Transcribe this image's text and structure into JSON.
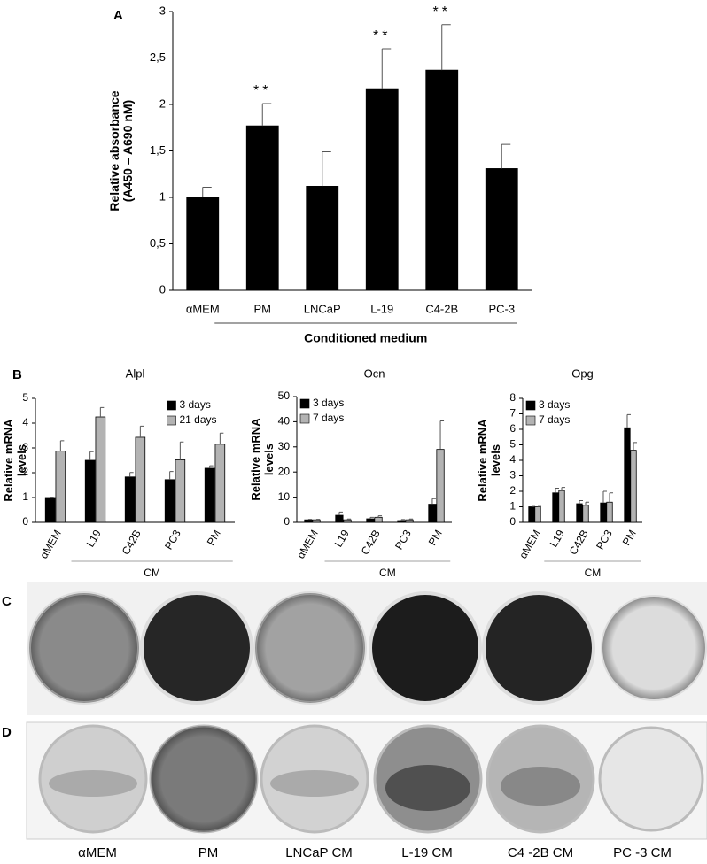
{
  "panel_labels": [
    "A",
    "B",
    "C",
    "D"
  ],
  "chart_data": [
    {
      "type": "bar",
      "ylabel": [
        "Relative absorbance",
        "(A450 – A690 nM)"
      ],
      "categories": [
        "αMEM",
        "PM",
        "LNCaP",
        "L-19",
        "C4-2B",
        "PC-3"
      ],
      "values": [
        1.0,
        1.77,
        1.12,
        2.17,
        2.37,
        1.31
      ],
      "errors": [
        0.11,
        0.24,
        0.37,
        0.43,
        0.49,
        0.26
      ],
      "significance": [
        null,
        "**",
        null,
        "**",
        "**",
        null
      ],
      "color": "#000000",
      "group_label": "Conditioned medium",
      "ylim": [
        0,
        3
      ],
      "yticks": [
        0,
        {
          "value": 0.5,
          "label": "0,5"
        },
        1,
        {
          "value": 1.5,
          "label": "1,5"
        },
        2,
        {
          "value": 2.5,
          "label": "2,5"
        },
        3
      ]
    },
    {
      "type": "grouped_bar",
      "title": "Alpl",
      "ylabel": [
        "Relative mRNA",
        "levels"
      ],
      "categories": [
        "αMEM",
        "L19",
        "C42B",
        "PC3",
        "PM"
      ],
      "series": [
        {
          "name": "3 days",
          "color": "#000000",
          "values": [
            1.0,
            2.5,
            1.83,
            1.72,
            2.18
          ],
          "errors": [
            0.02,
            0.35,
            0.18,
            0.33,
            0.1
          ]
        },
        {
          "name": "21 days",
          "color": "#b3b3b3",
          "values": [
            2.87,
            4.25,
            3.43,
            2.52,
            3.15
          ],
          "errors": [
            0.42,
            0.38,
            0.45,
            0.72,
            0.45
          ]
        }
      ],
      "group_label": "CM",
      "legend": "upper right",
      "ylim": [
        0,
        5
      ],
      "yticks": [
        0,
        1,
        2,
        3,
        4,
        5
      ]
    },
    {
      "type": "grouped_bar",
      "title": "Ocn",
      "ylabel": [
        "Relative mRNA",
        "levels"
      ],
      "categories": [
        "αMEM",
        "L19",
        "C42B",
        "PC3",
        "PM"
      ],
      "series": [
        {
          "name": "3 days",
          "color": "#000000",
          "values": [
            1,
            2.8,
            1.4,
            0.7,
            7.2
          ],
          "errors": [
            0.2,
            1.3,
            0.6,
            0.4,
            2.2
          ]
        },
        {
          "name": "7 days",
          "color": "#b3b3b3",
          "values": [
            1,
            1,
            2,
            1,
            29
          ],
          "errors": [
            0.2,
            0.3,
            0.6,
            0.3,
            11.3
          ]
        }
      ],
      "group_label": "CM",
      "legend": "upper left",
      "ylim": [
        0,
        50
      ],
      "yticks": [
        0,
        10,
        20,
        30,
        40,
        50
      ]
    },
    {
      "type": "grouped_bar",
      "title": "Opg",
      "ylabel": [
        "Relative mRNA",
        "levels"
      ],
      "categories": [
        "αMEM",
        "L19",
        "C42B",
        "PC3",
        "PM"
      ],
      "series": [
        {
          "name": "3 days",
          "color": "#000000",
          "values": [
            1,
            1.9,
            1.2,
            1.25,
            6.1
          ],
          "errors": [
            0.02,
            0.3,
            0.2,
            0.75,
            0.85
          ]
        },
        {
          "name": "7 days",
          "color": "#b3b3b3",
          "values": [
            1,
            2.05,
            1.1,
            1.3,
            4.65
          ],
          "errors": [
            0.02,
            0.2,
            0.2,
            0.6,
            0.5
          ]
        }
      ],
      "group_label": "CM",
      "legend": "upper left",
      "ylim": [
        0,
        8
      ],
      "yticks": [
        0,
        1,
        2,
        3,
        4,
        5,
        6,
        7,
        8
      ]
    }
  ],
  "well_captions": [
    "αMEM",
    "PM",
    "LNCaP CM",
    "L-19 CM",
    "C4 -2B CM",
    "PC -3 CM"
  ]
}
